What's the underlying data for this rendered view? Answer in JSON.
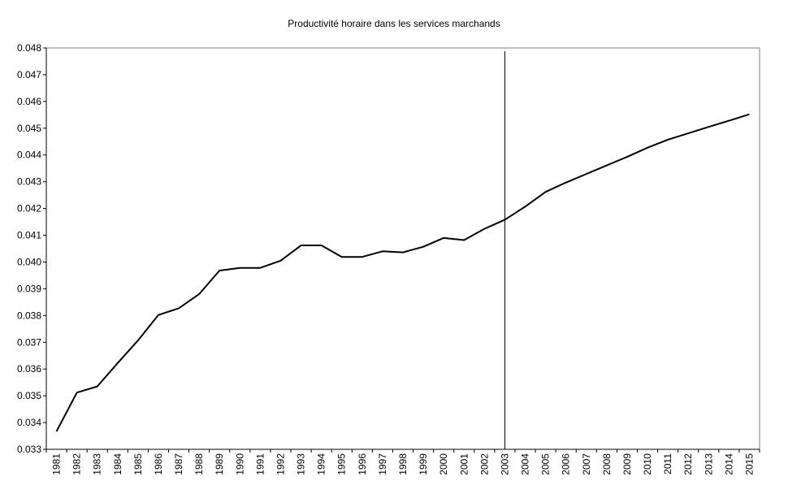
{
  "chart_data": {
    "type": "line",
    "title": "Productivité horaire dans les services marchands",
    "xlabel": "",
    "ylabel": "",
    "ylim": [
      0.033,
      0.048
    ],
    "y_ticks": [
      "0.033",
      "0.034",
      "0.035",
      "0.036",
      "0.037",
      "0.038",
      "0.039",
      "0.040",
      "0.041",
      "0.042",
      "0.043",
      "0.044",
      "0.045",
      "0.046",
      "0.047",
      "0.048"
    ],
    "categories": [
      "1981",
      "1982",
      "1983",
      "1984",
      "1985",
      "1986",
      "1987",
      "1988",
      "1989",
      "1990",
      "1991",
      "1992",
      "1993",
      "1994",
      "1995",
      "1996",
      "1997",
      "1998",
      "1999",
      "2000",
      "2001",
      "2002",
      "2003",
      "2004",
      "2005",
      "2006",
      "2007",
      "2008",
      "2009",
      "2010",
      "2011",
      "2012",
      "2013",
      "2014",
      "2015"
    ],
    "series": [
      {
        "values": [
          0.03367,
          0.03512,
          0.03535,
          0.03622,
          0.03707,
          0.03802,
          0.03827,
          0.0388,
          0.03968,
          0.03978,
          0.03978,
          0.04005,
          0.04062,
          0.04062,
          0.04019,
          0.04019,
          0.0404,
          0.04036,
          0.04057,
          0.0409,
          0.04082,
          0.04124,
          0.04158,
          0.04207,
          0.04262,
          0.04297,
          0.04329,
          0.04361,
          0.04393,
          0.04427,
          0.04457,
          0.04481,
          0.04505,
          0.04528,
          0.04552
        ]
      }
    ],
    "vertical_marker": "2003",
    "grid": false,
    "legend": "none",
    "colors": {
      "line": "#000000",
      "axes": "#000000",
      "plot_border": "#808080",
      "background": "#ffffff"
    }
  }
}
